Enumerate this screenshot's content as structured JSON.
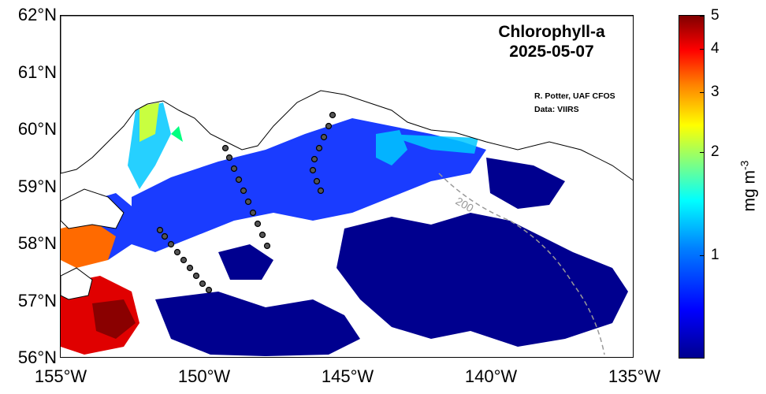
{
  "title_line1": "Chlorophyll-a",
  "title_line2": "2025-05-07",
  "credit_line1": "R. Potter, UAF CFOS",
  "credit_line2": "Data: VIIRS",
  "lat_ticks": [
    "62°N",
    "61°N",
    "60°N",
    "59°N",
    "58°N",
    "57°N",
    "56°N"
  ],
  "lon_ticks": [
    "155°W",
    "150°W",
    "145°W",
    "140°W",
    "135°W"
  ],
  "colorbar": {
    "ticks": [
      "5",
      "4",
      "3",
      "2",
      "1"
    ],
    "label": "mg m",
    "label_sup": "-3",
    "scale": "log"
  },
  "contour_label": "200",
  "map_extent": {
    "lon": [
      -155,
      -135
    ],
    "lat": [
      56,
      62
    ]
  },
  "colors": {
    "low": "#00008f",
    "high": "#800000",
    "station": "#555555"
  }
}
